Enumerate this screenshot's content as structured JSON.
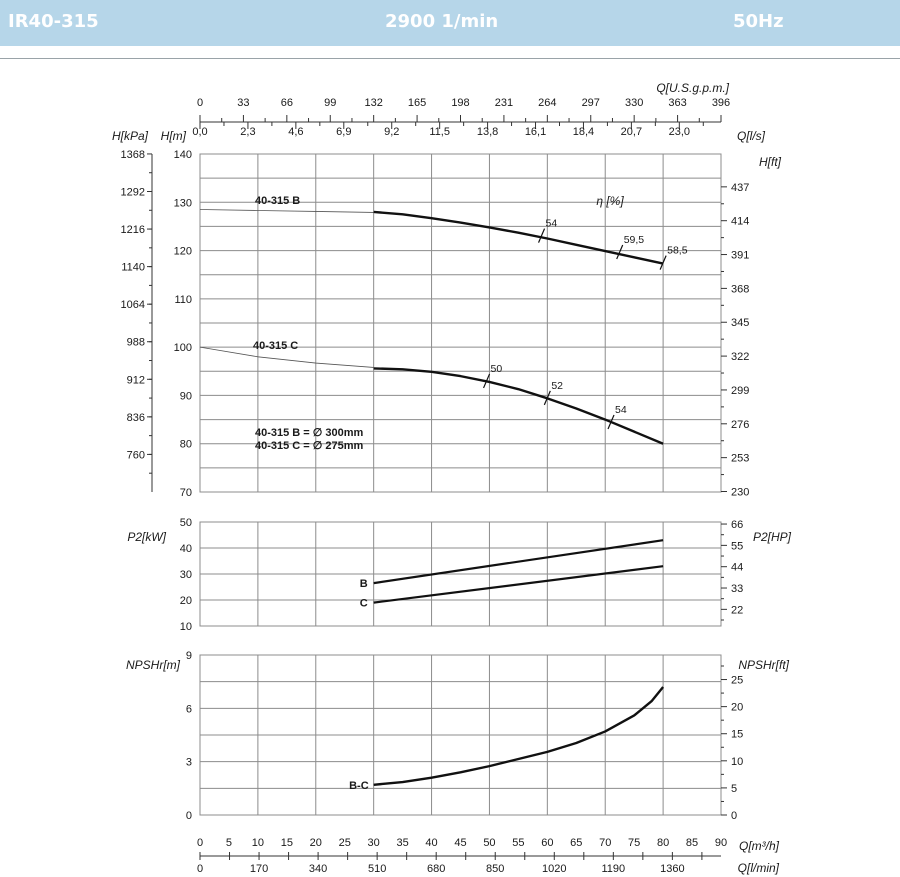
{
  "header": {
    "model": "IR40-315",
    "speed": "2900 1/min",
    "frequency": "50Hz"
  },
  "chart_data": [
    {
      "type": "line",
      "name": "head",
      "xlim": [
        0,
        90
      ],
      "ylim": [
        70,
        140
      ],
      "axes": {
        "top_outer_label": "Q[U.S.g.p.m.]",
        "top_outer_ticks": [
          "0",
          "33",
          "66",
          "99",
          "132",
          "165",
          "198",
          "231",
          "264",
          "297",
          "330",
          "363",
          "396"
        ],
        "top_inner_label": "Q[l/s]",
        "top_inner_ticks": [
          "0,0",
          "2,3",
          "4,6",
          "6,9",
          "9,2",
          "11,5",
          "13,8",
          "16,1",
          "18,4",
          "20,7",
          "23,0"
        ],
        "left_kpa_label": "H[kPa]",
        "left_kpa_ticks": [
          {
            "v": 760,
            "t": "760"
          },
          {
            "v": 836,
            "t": "836"
          },
          {
            "v": 912,
            "t": "912"
          },
          {
            "v": 988,
            "t": "988"
          },
          {
            "v": 1064,
            "t": "1064"
          },
          {
            "v": 1140,
            "t": "1140"
          },
          {
            "v": 1216,
            "t": "1216"
          },
          {
            "v": 1292,
            "t": "1292"
          },
          {
            "v": 1368,
            "t": "1368"
          }
        ],
        "left_m_label": "H[m]",
        "left_m_ticks": [
          "70",
          "80",
          "90",
          "100",
          "110",
          "120",
          "130",
          "140"
        ],
        "right_ft_label": "H[ft]",
        "right_ft_ticks": [
          {
            "v": 230,
            "t": "230"
          },
          {
            "v": 253,
            "t": "253"
          },
          {
            "v": 276,
            "t": "276"
          },
          {
            "v": 299,
            "t": "299"
          },
          {
            "v": 322,
            "t": "322"
          },
          {
            "v": 345,
            "t": "345"
          },
          {
            "v": 368,
            "t": "368"
          },
          {
            "v": 391,
            "t": "391"
          },
          {
            "v": 414,
            "t": "414"
          },
          {
            "v": 437,
            "t": "437"
          }
        ]
      },
      "series": [
        {
          "name": "40-315 B",
          "thin": [
            [
              0,
              128.5
            ],
            [
              10,
              128.3
            ],
            [
              20,
              128.1
            ],
            [
              30,
              127.9
            ]
          ],
          "x": [
            30,
            35,
            40,
            45,
            50,
            55,
            60,
            65,
            70,
            75,
            80
          ],
          "y": [
            128,
            127.5,
            126.7,
            125.8,
            124.8,
            123.7,
            122.5,
            121.2,
            119.9,
            118.6,
            117.3
          ]
        },
        {
          "name": "40-315 C",
          "thin": [
            [
              0,
              100
            ],
            [
              10,
              98
            ],
            [
              20,
              96.7
            ],
            [
              30,
              95.8
            ]
          ],
          "x": [
            30,
            35,
            40,
            45,
            50,
            55,
            60,
            65,
            70,
            75,
            80
          ],
          "y": [
            95.6,
            95.4,
            94.9,
            94,
            92.8,
            91.3,
            89.4,
            87.3,
            85,
            82.5,
            80
          ]
        }
      ],
      "efficiency_label": "η [%]",
      "efficiency_marks": [
        {
          "x": 59,
          "y": 123.1,
          "label": "54"
        },
        {
          "x": 72.5,
          "y": 119.7,
          "label": "59,5"
        },
        {
          "x": 80,
          "y": 117.5,
          "label": "58,5"
        },
        {
          "x": 49.5,
          "y": 93.0,
          "label": "50"
        },
        {
          "x": 60,
          "y": 89.5,
          "label": "52"
        },
        {
          "x": 71,
          "y": 84.5,
          "label": "54"
        }
      ],
      "notes": [
        "40-315 B = ∅ 300mm",
        "40-315 C = ∅ 275mm"
      ]
    },
    {
      "type": "line",
      "name": "power",
      "xlim": [
        0,
        90
      ],
      "ylim": [
        10,
        50
      ],
      "axes": {
        "left_label": "P2[kW]",
        "left_ticks": [
          "10",
          "20",
          "30",
          "40",
          "50"
        ],
        "right_label": "P2[HP]",
        "right_ticks": [
          {
            "v": 22,
            "t": "22"
          },
          {
            "v": 33,
            "t": "33"
          },
          {
            "v": 44,
            "t": "44"
          },
          {
            "v": 55,
            "t": "55"
          },
          {
            "v": 66,
            "t": "66"
          }
        ]
      },
      "series": [
        {
          "name": "B",
          "x": [
            30,
            80
          ],
          "y": [
            26.5,
            43
          ]
        },
        {
          "name": "C",
          "x": [
            30,
            80
          ],
          "y": [
            19,
            33
          ]
        }
      ]
    },
    {
      "type": "line",
      "name": "npsh",
      "xlim": [
        0,
        90
      ],
      "ylim": [
        0,
        9
      ],
      "axes": {
        "left_label": "NPSHr[m]",
        "left_ticks": [
          "0",
          "3",
          "6",
          "9"
        ],
        "right_label": "NPSHr[ft]",
        "right_ticks": [
          {
            "v": 0,
            "t": "0"
          },
          {
            "v": 5,
            "t": "5"
          },
          {
            "v": 10,
            "t": "10"
          },
          {
            "v": 15,
            "t": "15"
          },
          {
            "v": 20,
            "t": "20"
          },
          {
            "v": 25,
            "t": "25"
          }
        ],
        "bottom_label": "Q[m³/h]",
        "bottom_ticks": [
          "0",
          "5",
          "10",
          "15",
          "20",
          "25",
          "30",
          "35",
          "40",
          "45",
          "50",
          "55",
          "60",
          "65",
          "70",
          "75",
          "80",
          "85",
          "90"
        ],
        "bottom2_label": "Q[l/min]",
        "bottom2_ticks": [
          "0",
          "170",
          "340",
          "510",
          "680",
          "850",
          "1020",
          "1190",
          "1360"
        ]
      },
      "series": [
        {
          "name": "B-C",
          "x": [
            30,
            35,
            40,
            45,
            50,
            55,
            60,
            65,
            70,
            75,
            78,
            80
          ],
          "y": [
            1.7,
            1.85,
            2.1,
            2.4,
            2.75,
            3.15,
            3.55,
            4.05,
            4.7,
            5.6,
            6.4,
            7.2
          ]
        }
      ]
    }
  ]
}
